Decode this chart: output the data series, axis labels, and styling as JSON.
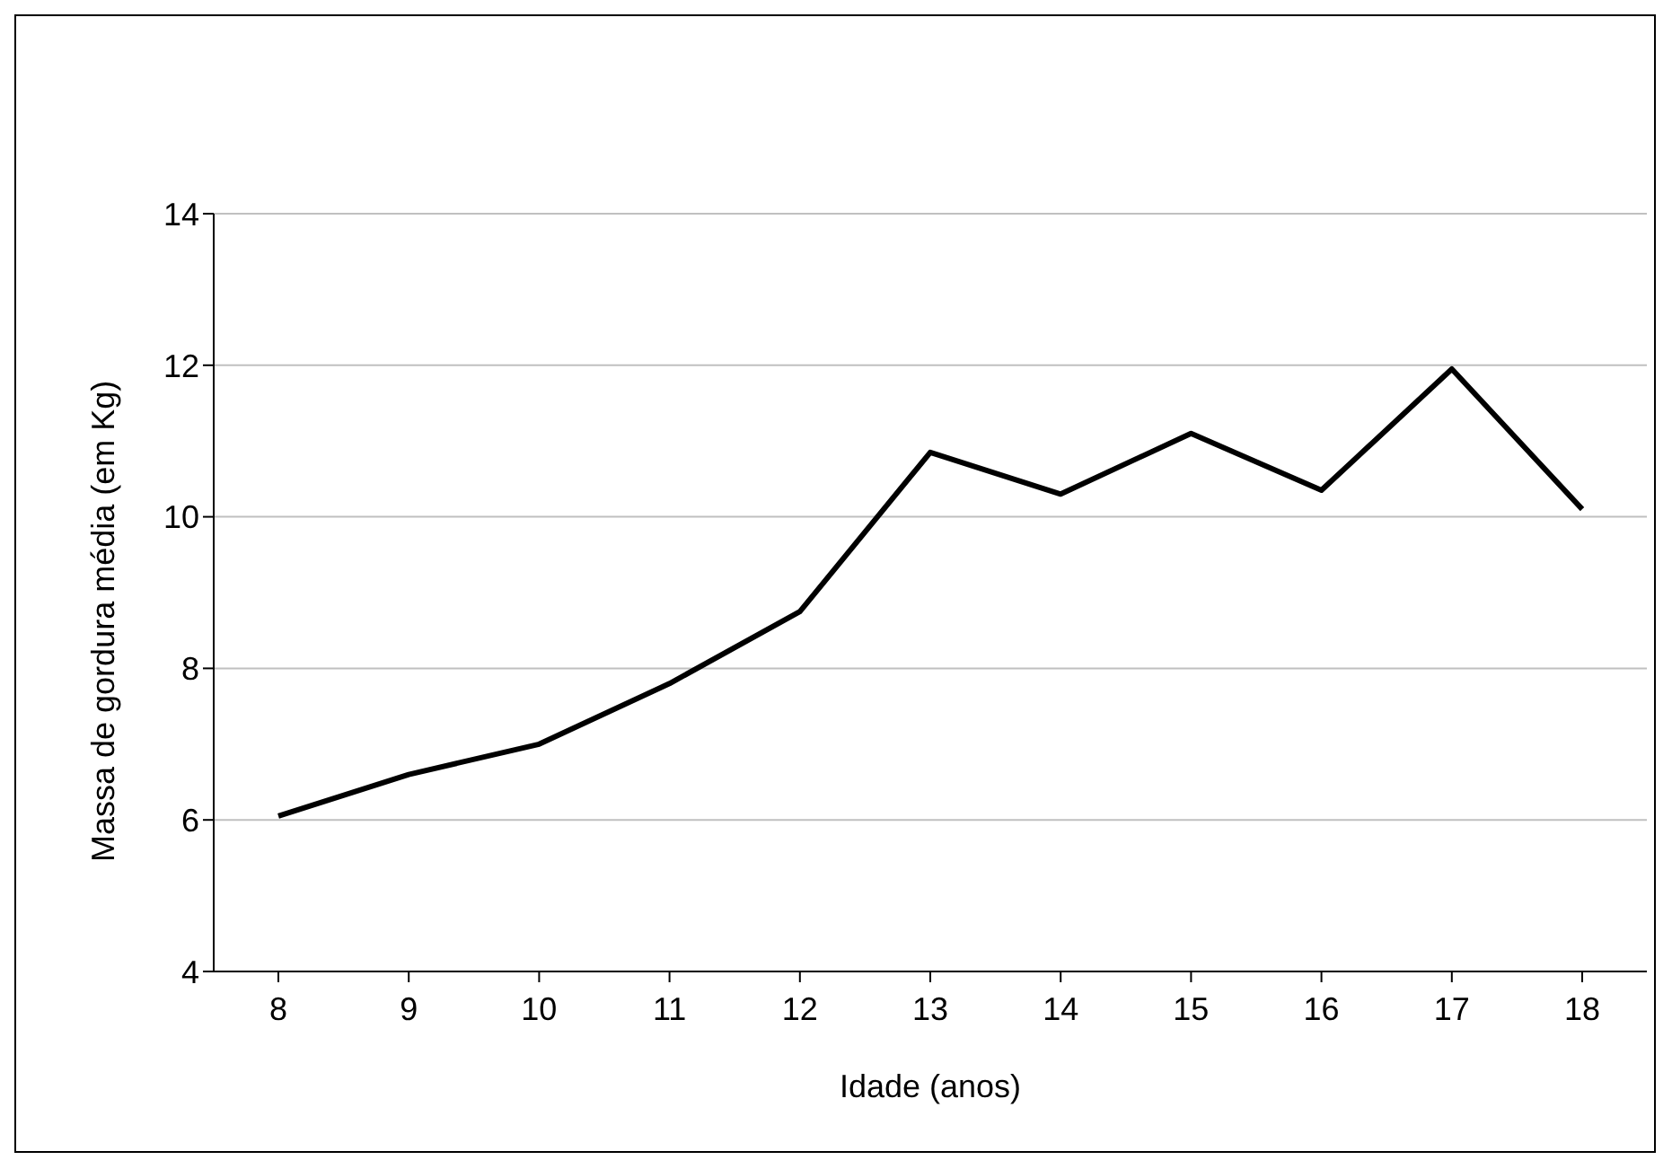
{
  "chart_data": {
    "type": "line",
    "xlabel": "Idade (anos)",
    "ylabel": "Massa de gordura média (em Kg)",
    "categories": [
      "8",
      "9",
      "10",
      "11",
      "12",
      "13",
      "14",
      "15",
      "16",
      "17",
      "18"
    ],
    "series": [
      {
        "color": "#000000",
        "values": [
          6.05,
          6.6,
          7.0,
          7.8,
          8.75,
          10.85,
          10.3,
          11.1,
          10.35,
          11.95,
          10.1
        ]
      }
    ],
    "ylim": [
      4,
      14
    ],
    "yticks": [
      4,
      6,
      8,
      10,
      12,
      14
    ],
    "grid": "y",
    "marker": "none",
    "line_style": "solid"
  }
}
